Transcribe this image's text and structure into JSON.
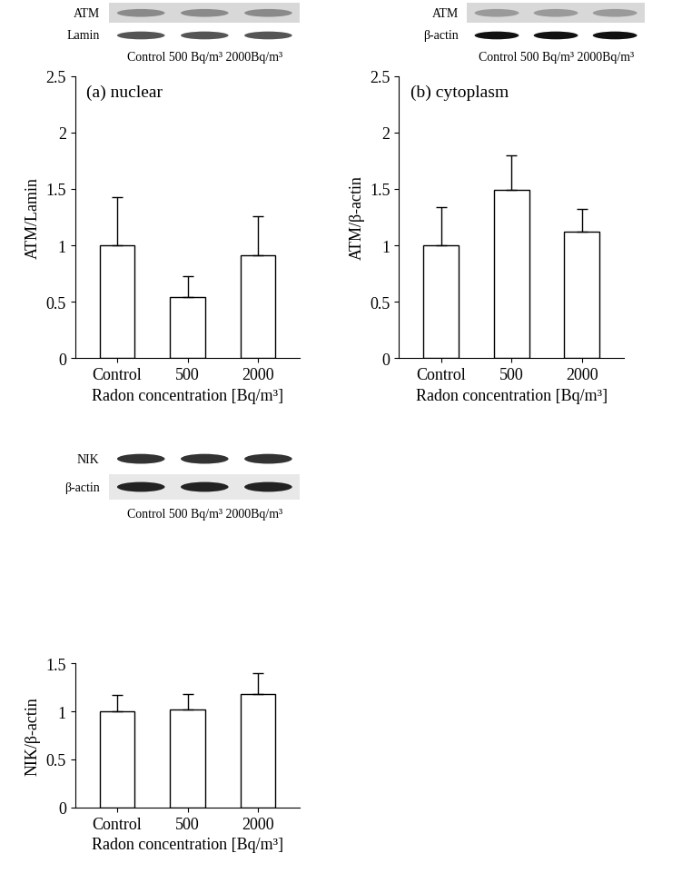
{
  "chart_data": [
    {
      "type": "bar",
      "title": "(a) nuclear",
      "x_label": "Radon concentration [Bq/m³]",
      "y_label": "ATM/Lamin",
      "categories": [
        "Control",
        "500",
        "2000"
      ],
      "values": [
        1.0,
        0.54,
        0.91
      ],
      "errors": [
        0.43,
        0.19,
        0.35
      ],
      "color": "#ffffff",
      "ylim": [
        0,
        2.5
      ],
      "yticks": [
        0,
        0.5,
        1,
        1.5,
        2,
        2.5
      ],
      "grid": false
    },
    {
      "type": "bar",
      "title": "(b) cytoplasm",
      "x_label": "Radon concentration [Bq/m³]",
      "y_label": "ATM/β-actin",
      "categories": [
        "Control",
        "500",
        "2000"
      ],
      "values": [
        1.0,
        1.49,
        1.12
      ],
      "errors": [
        0.34,
        0.31,
        0.2
      ],
      "color": "#ffffff",
      "ylim": [
        0,
        2.5
      ],
      "yticks": [
        0,
        0.5,
        1,
        1.5,
        2,
        2.5
      ],
      "grid": false
    },
    {
      "type": "bar",
      "x_label": "Radon concentration [Bq/m³]",
      "y_label": "NIK/β-actin",
      "categories": [
        "Control",
        "500",
        "2000"
      ],
      "values": [
        1.0,
        1.02,
        1.18
      ],
      "errors": [
        0.17,
        0.16,
        0.22
      ],
      "color": "#ffffff",
      "ylim": [
        0,
        1.5
      ],
      "yticks": [
        0,
        0.5,
        1,
        1.5
      ],
      "grid": false
    }
  ],
  "blots": [
    {
      "rows": [
        "ATM",
        "Lamin"
      ],
      "lanes": "Control 500 Bq/m³ 2000Bq/m³"
    },
    {
      "rows": [
        "ATM",
        "β-actin"
      ],
      "lanes": "Control 500 Bq/m³ 2000Bq/m³"
    },
    {
      "rows": [
        "NIK",
        "β-actin"
      ],
      "lanes": "Control 500 Bq/m³ 2000Bq/m³"
    }
  ]
}
